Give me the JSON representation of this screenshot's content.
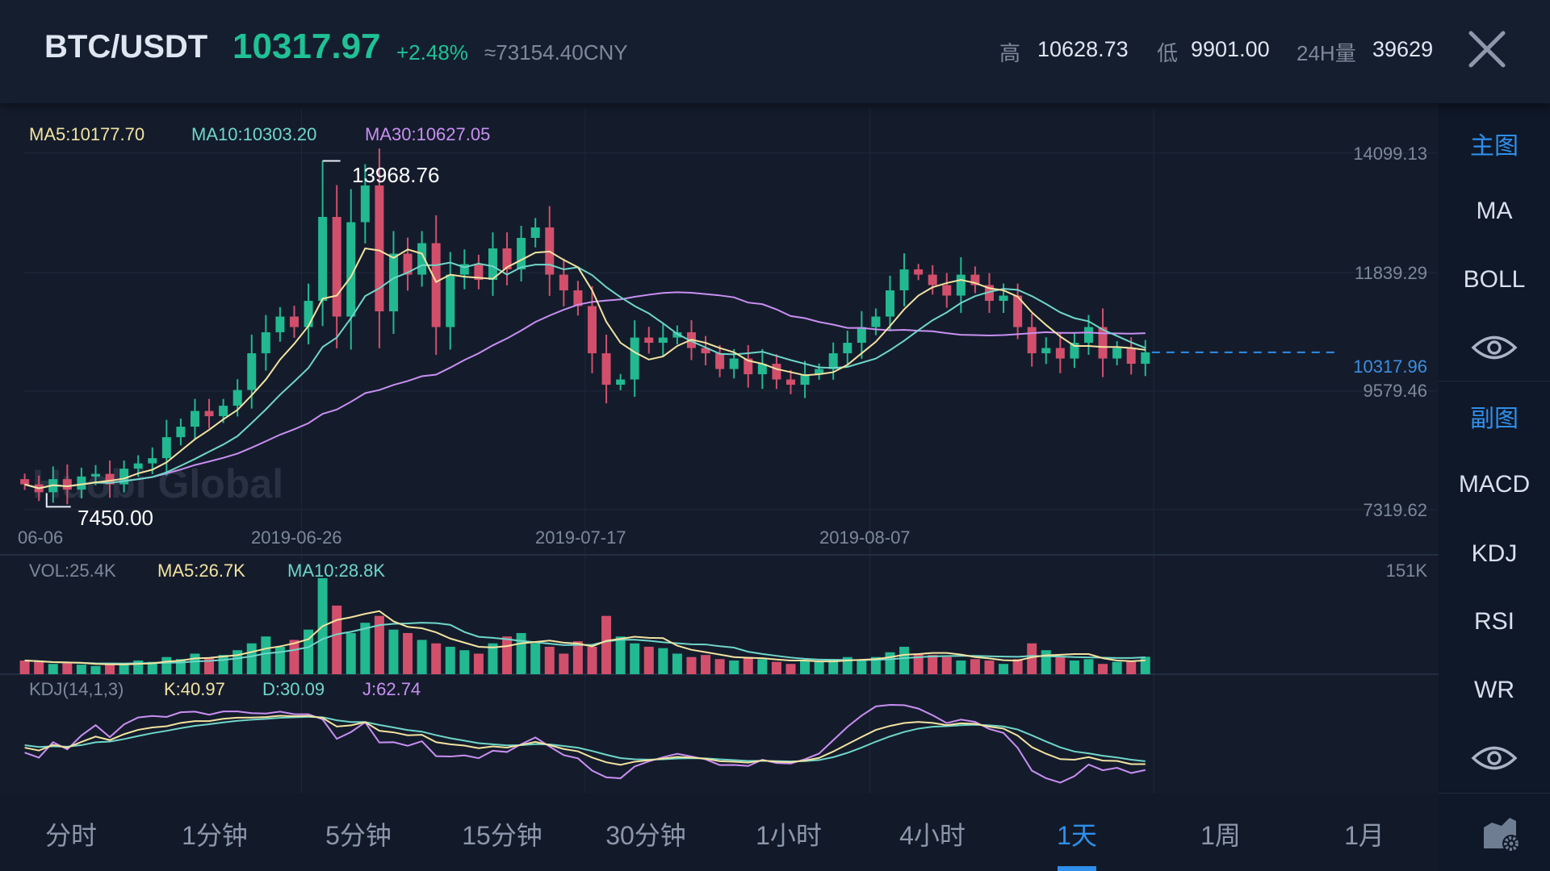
{
  "header": {
    "pair": "BTC/USDT",
    "price": "10317.97",
    "change": "+2.48%",
    "cny": "≈73154.40CNY",
    "high_label": "高",
    "high_value": "10628.73",
    "low_label": "低",
    "low_value": "9901.00",
    "vol_label": "24H量",
    "vol_value": "39629",
    "close_icon": "close-icon"
  },
  "ma_legend": {
    "ma5": "MA5:10177.70",
    "ma10": "MA10:10303.20",
    "ma30": "MA30:10627.05"
  },
  "price_axis": [
    "14099.13",
    "11839.29",
    "9579.46",
    "7319.62"
  ],
  "current_price_label": "10317.96",
  "date_labels": [
    "06-06",
    "2019-06-26",
    "2019-07-17",
    "2019-08-07"
  ],
  "annotations": {
    "high": "13968.76",
    "low": "7450.00"
  },
  "watermark": "Huobi Global",
  "volume_legend": {
    "vol": "VOL:25.4K",
    "ma5": "MA5:26.7K",
    "ma10": "MA10:28.8K",
    "max": "151K"
  },
  "kdj_legend": {
    "title": "KDJ(14,1,3)",
    "k": "K:40.97",
    "d": "D:30.09",
    "j": "J:62.74"
  },
  "sidebar": {
    "main_section": "主图",
    "main_items": [
      "MA",
      "BOLL"
    ],
    "sub_section": "副图",
    "sub_items": [
      "MACD",
      "KDJ",
      "RSI",
      "WR"
    ],
    "icons": [
      "eye-icon",
      "eye-icon",
      "chart-settings-icon"
    ]
  },
  "tabs": [
    "分时",
    "1分钟",
    "5分钟",
    "15分钟",
    "30分钟",
    "1小时",
    "4小时",
    "1天",
    "1周",
    "1月"
  ],
  "active_tab": "1天",
  "colors": {
    "up": "#22b890",
    "down": "#d24f6b",
    "ma5": "#f3e3a0",
    "ma10": "#6fd6c8",
    "ma30": "#c98ff2",
    "accent": "#2f8fea",
    "background": "#141c2c"
  },
  "chart_data": {
    "type": "candlestick",
    "interval": "1天",
    "ylim": [
      7319.62,
      14099.13
    ],
    "high": 13968.76,
    "low": 7450.0,
    "closes": [
      7800,
      7650,
      7900,
      7700,
      7950,
      8000,
      7800,
      8100,
      8200,
      8300,
      8700,
      8900,
      9200,
      9100,
      9300,
      9600,
      10300,
      10700,
      11000,
      10800,
      11300,
      12900,
      11000,
      12800,
      13500,
      11100,
      12200,
      11800,
      12400,
      10800,
      11800,
      12000,
      11700,
      12300,
      11900,
      12500,
      12700,
      11800,
      11500,
      11200,
      10300,
      9700,
      9800,
      10600,
      10500,
      10600,
      10700,
      10400,
      10300,
      10000,
      10200,
      9900,
      10100,
      9800,
      9700,
      9900,
      10000,
      10300,
      10500,
      10800,
      11000,
      11500,
      11900,
      11800,
      11600,
      11400,
      11800,
      11600,
      11300,
      11400,
      10800,
      10300,
      10400,
      10200,
      10500,
      10800,
      10200,
      10400,
      10100,
      10317.97
    ],
    "volumes_k": [
      20,
      18,
      15,
      16,
      14,
      12,
      15,
      14,
      20,
      18,
      25,
      22,
      30,
      24,
      28,
      35,
      45,
      55,
      40,
      50,
      65,
      140,
      100,
      60,
      75,
      85,
      65,
      60,
      50,
      45,
      40,
      35,
      30,
      45,
      55,
      60,
      45,
      40,
      30,
      48,
      40,
      85,
      55,
      45,
      40,
      38,
      30,
      25,
      28,
      22,
      20,
      25,
      22,
      18,
      15,
      20,
      18,
      22,
      25,
      20,
      25,
      32,
      40,
      30,
      28,
      25,
      20,
      22,
      20,
      15,
      22,
      45,
      35,
      25,
      20,
      22,
      15,
      18,
      20,
      25.4
    ]
  }
}
